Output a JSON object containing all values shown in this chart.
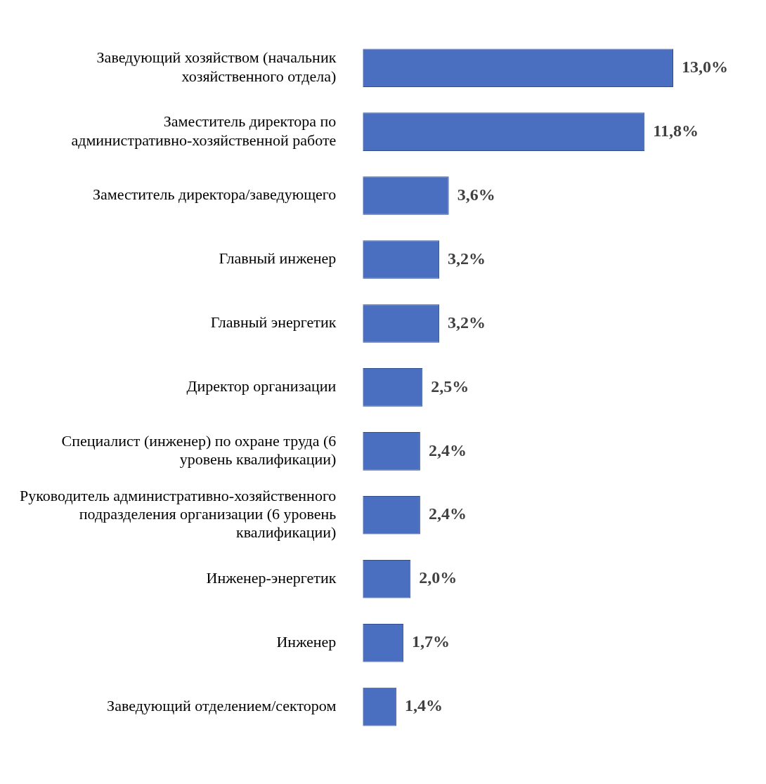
{
  "chart_data": {
    "type": "bar",
    "orientation": "horizontal",
    "categories": [
      "Заведующий хозяйством (начальник хозяйственного отдела)",
      "Заместитель директора по административно-хозяйственной работе",
      "Заместитель директора/заведующего",
      "Главный инженер",
      "Главный энергетик",
      "Директор организации",
      "Специалист (инженер) по охране труда (6 уровень квалификации)",
      "Руководитель административно-хозяйственного подразделения организации (6 уровень квалификации)",
      "Инженер-энергетик",
      "Инженер",
      "Заведующий отделением/сектором"
    ],
    "values": [
      13.0,
      11.8,
      3.6,
      3.2,
      3.2,
      2.5,
      2.4,
      2.4,
      2.0,
      1.7,
      1.4
    ],
    "value_labels": [
      "13,0%",
      "11,8%",
      "3,6%",
      "3,2%",
      "3,2%",
      "2,5%",
      "2,4%",
      "2,4%",
      "2,0%",
      "1,7%",
      "1,4%"
    ],
    "color": "#4a6fc0",
    "legend": false
  }
}
